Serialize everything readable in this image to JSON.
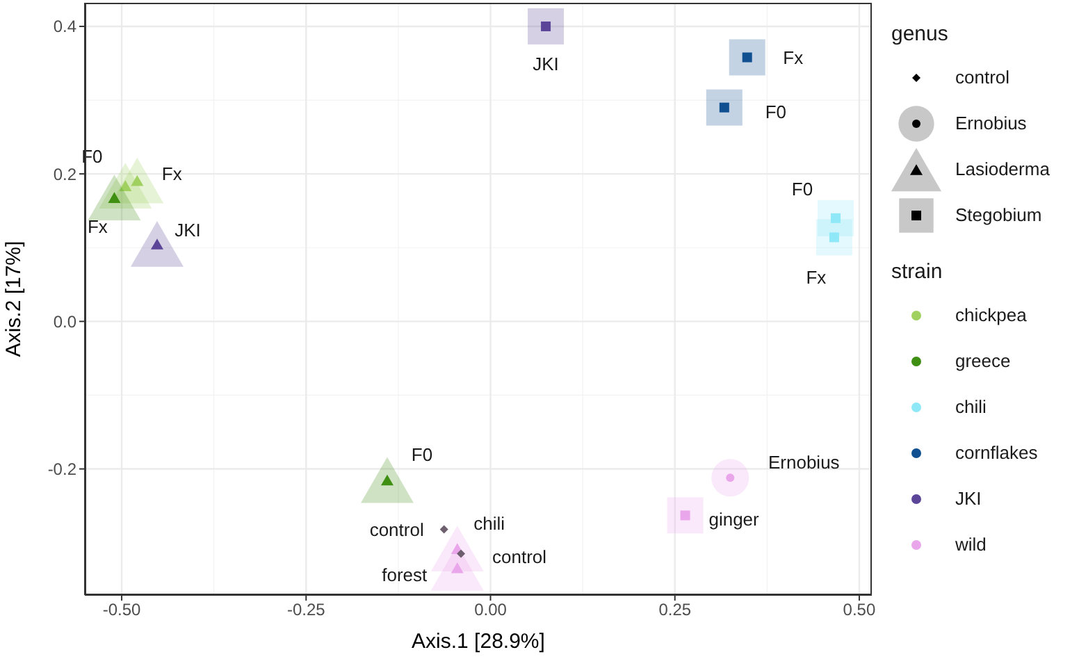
{
  "chart_data": {
    "type": "scatter",
    "xlabel": "Axis.1   [28.9%]",
    "ylabel": "Axis.2   [17%]",
    "xlim": [
      -0.55,
      0.517
    ],
    "ylim": [
      -0.371,
      0.432
    ],
    "xticks": [
      {
        "value": -0.5,
        "label": "-0.50"
      },
      {
        "value": -0.25,
        "label": "-0.25"
      },
      {
        "value": 0,
        "label": "0.00"
      },
      {
        "value": 0.25,
        "label": "0.25"
      },
      {
        "value": 0.5,
        "label": "0.50"
      }
    ],
    "yticks": [
      {
        "value": -0.2,
        "label": "-0.2"
      },
      {
        "value": 0,
        "label": "0.0"
      },
      0.2,
      0.4
    ],
    "grid": true,
    "legend": "right",
    "legend_title": "strain",
    "annotations": [
      "genus",
      "control",
      "Ernobius",
      "Lasioderma",
      "Stegobium"
    ],
    "series": [
      {
        "name": "chickpea",
        "color": "#9fd060",
        "marker": "triangle",
        "x": [
          -0.479,
          -0.495
        ],
        "values": [
          0.191,
          0.184
        ],
        "value_labels": [
          "Fx",
          "F0"
        ]
      },
      {
        "name": "greece",
        "color": "#3f8f12",
        "marker": "triangle",
        "x": [
          -0.51,
          -0.14
        ],
        "values": [
          0.168,
          -0.215
        ],
        "value_labels": [
          "Fx",
          "F0"
        ]
      },
      {
        "name": "chili",
        "color": "#8ee8f8",
        "marker": "square",
        "x": [
          0.468,
          0.466
        ],
        "values": [
          0.14,
          0.114
        ],
        "value_labels": [
          "F0",
          "Fx"
        ]
      },
      {
        "name": "cornflakes",
        "color": "#105091",
        "marker": "square",
        "x": [
          0.348,
          0.317
        ],
        "values": [
          0.358,
          0.29
        ],
        "value_labels": [
          "Fx",
          "F0"
        ]
      },
      {
        "name": "JKI",
        "color": "#5b4598",
        "marker": "triangle",
        "x": [
          -0.452
        ],
        "values": [
          0.105
        ],
        "value_labels": [
          "JKI"
        ]
      },
      {
        "color": "#5b4598",
        "marker": "square",
        "x": [
          0.075
        ],
        "values": [
          0.4
        ],
        "value_labels": [
          "JKI"
        ]
      },
      {
        "name": "wild",
        "color": "#eaa6ea",
        "marker": "circle",
        "x": [
          0.325
        ],
        "values": [
          -0.212
        ],
        "value_labels": [
          "Ernobius"
        ]
      },
      {
        "color": "#eaa6ea",
        "marker": "square",
        "x": [
          0.264
        ],
        "values": [
          -0.263
        ],
        "value_labels": [
          "ginger"
        ]
      },
      {
        "color": "#eaa6ea",
        "marker": "triangle",
        "x": [
          -0.045,
          -0.045
        ],
        "values": [
          -0.308,
          -0.334
        ],
        "value_labels": [
          "chili",
          "forest"
        ]
      },
      {
        "color": "#6e5f6e",
        "marker": "diamond",
        "x": [
          -0.063,
          -0.04
        ],
        "values": [
          -0.282,
          -0.315
        ],
        "value_labels": [
          "control",
          "control"
        ]
      }
    ]
  }
}
